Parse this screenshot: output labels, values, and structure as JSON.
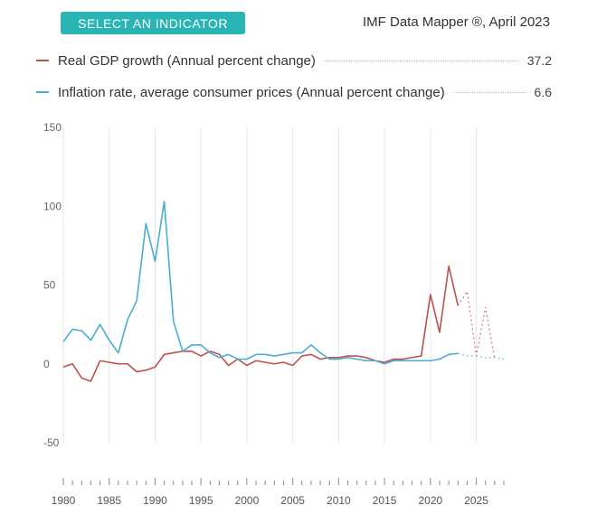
{
  "header": {
    "select_button": "SELECT AN INDICATOR",
    "brand": "IMF Data Mapper ®, April 2023"
  },
  "legend": [
    {
      "label": "Real GDP growth (Annual percent change)",
      "value": "37.2",
      "color": "#c0504d"
    },
    {
      "label": "Inflation rate, average consumer prices (Annual percent change)",
      "value": "6.6",
      "color": "#4aaed0"
    }
  ],
  "chart_data": {
    "type": "line",
    "x_range": [
      1980,
      2028
    ],
    "ylim": [
      -50,
      150
    ],
    "y_ticks": [
      150,
      100,
      50,
      0,
      -50
    ],
    "y_tick_labels": [
      "150",
      "100",
      "50",
      "0",
      "-50"
    ],
    "x_ticks": [
      1980,
      1985,
      1990,
      1995,
      2000,
      2005,
      2010,
      2015,
      2020,
      2025
    ],
    "x_tick_labels": [
      "1980",
      "1985",
      "1990",
      "1995",
      "2000",
      "2005",
      "2010",
      "2015",
      "2020",
      "2025"
    ],
    "series": [
      {
        "name": "Real GDP growth (Annual percent change)",
        "color": "#c0504d",
        "actual": {
          "x": [
            1980,
            1981,
            1982,
            1983,
            1984,
            1985,
            1986,
            1987,
            1988,
            1989,
            1990,
            1991,
            1992,
            1993,
            1994,
            1995,
            1996,
            1997,
            1998,
            1999,
            2000,
            2001,
            2002,
            2003,
            2004,
            2005,
            2006,
            2007,
            2008,
            2009,
            2010,
            2011,
            2012,
            2013,
            2014,
            2015,
            2016,
            2017,
            2018,
            2019,
            2020,
            2021,
            2022,
            2023
          ],
          "y": [
            -2,
            0,
            -9,
            -11,
            2,
            1,
            0,
            0,
            -5,
            -4,
            -2,
            6,
            7,
            8,
            8,
            5,
            8,
            6,
            -1,
            3,
            -1,
            2,
            1,
            0,
            1,
            -1,
            5,
            6,
            3,
            4,
            4,
            5,
            5,
            4,
            2,
            1,
            3,
            3,
            4,
            5,
            44,
            20,
            62,
            37
          ]
        },
        "projected": {
          "x": [
            2023,
            2024,
            2025,
            2026,
            2027
          ],
          "y": [
            37,
            46,
            5,
            36,
            3
          ]
        }
      },
      {
        "name": "Inflation rate, average consumer prices (Annual percent change)",
        "color": "#4aaed0",
        "actual": {
          "x": [
            1980,
            1981,
            1982,
            1983,
            1984,
            1985,
            1986,
            1987,
            1988,
            1989,
            1990,
            1991,
            1992,
            1993,
            1994,
            1995,
            1996,
            1997,
            1998,
            1999,
            2000,
            2001,
            2002,
            2003,
            2004,
            2005,
            2006,
            2007,
            2008,
            2009,
            2010,
            2011,
            2012,
            2013,
            2014,
            2015,
            2016,
            2017,
            2018,
            2019,
            2020,
            2021,
            2022,
            2023
          ],
          "y": [
            14,
            22,
            21,
            15,
            25,
            15,
            7,
            28,
            40,
            89,
            65,
            103,
            27,
            8,
            12,
            12,
            7,
            4,
            6,
            3,
            3,
            6,
            6,
            5,
            6,
            7,
            7,
            12,
            7,
            3,
            3,
            4,
            3,
            2,
            2,
            0,
            2,
            2,
            2,
            2,
            2,
            3,
            6,
            6.6
          ]
        },
        "projected": {
          "x": [
            2023,
            2024,
            2025,
            2026,
            2027,
            2028
          ],
          "y": [
            6.6,
            5,
            5,
            4,
            4,
            3
          ]
        }
      }
    ]
  }
}
